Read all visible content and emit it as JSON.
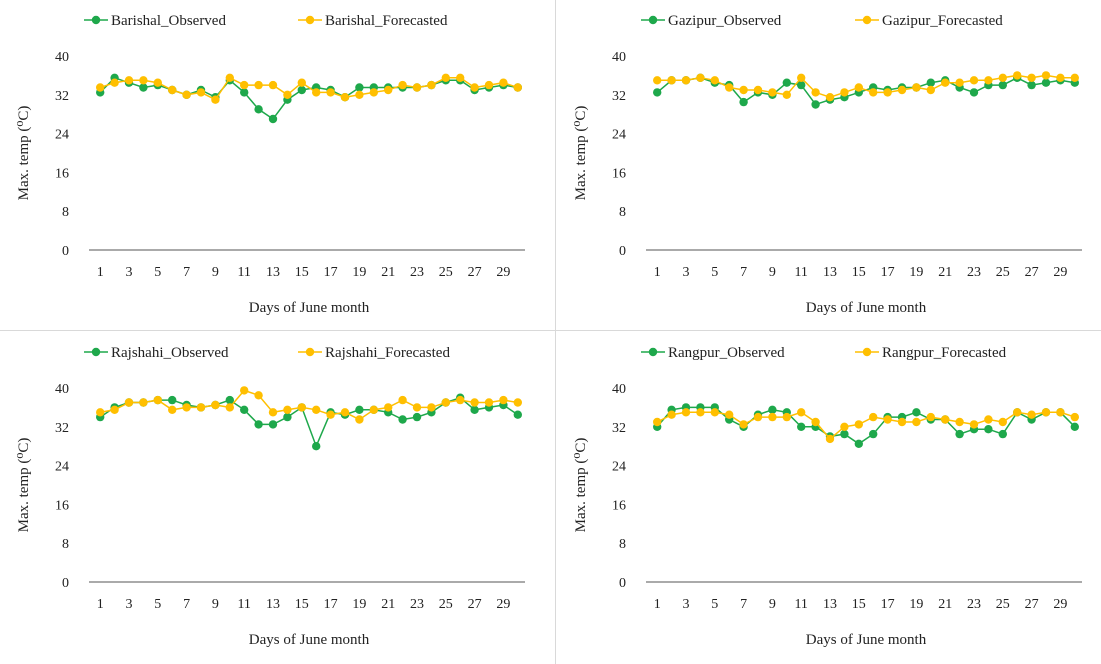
{
  "colors": {
    "observed": "#1ea84b",
    "forecasted": "#ffbf00",
    "axis": "#555555",
    "text": "#222222"
  },
  "chart_data": [
    {
      "type": "line",
      "xlabel": "Days of June month",
      "ylabel": "Max. temp (⁰C)",
      "ylim": [
        0,
        40
      ],
      "yticks": [
        "0",
        "8",
        "16",
        "24",
        "32",
        "40"
      ],
      "xticks": [
        "1",
        "3",
        "5",
        "7",
        "9",
        "11",
        "13",
        "15",
        "17",
        "19",
        "21",
        "23",
        "25",
        "27",
        "29"
      ],
      "x": [
        1,
        2,
        3,
        4,
        5,
        6,
        7,
        8,
        9,
        10,
        11,
        12,
        13,
        14,
        15,
        16,
        17,
        18,
        19,
        20,
        21,
        22,
        23,
        24,
        25,
        26,
        27,
        28,
        29,
        30
      ],
      "legend_position": "top",
      "series": [
        {
          "name": "Barishal_Observed",
          "values": [
            32.5,
            35.5,
            34.5,
            33.5,
            34,
            33,
            32,
            33,
            31.5,
            35,
            32.5,
            29,
            27,
            31,
            33,
            33.5,
            33,
            31.5,
            33.5,
            33.5,
            33.5,
            33.5,
            33.5,
            34,
            35,
            35,
            33,
            33.5,
            34,
            33.5
          ]
        },
        {
          "name": "Barishal_Forecasted",
          "values": [
            33.5,
            34.5,
            35,
            35,
            34.5,
            33,
            32,
            32.5,
            31,
            35.5,
            34,
            34,
            34,
            32,
            34.5,
            32.5,
            32.5,
            31.5,
            32,
            32.5,
            33,
            34,
            33.5,
            34,
            35.5,
            35.5,
            33.5,
            34,
            34.5,
            33.5
          ]
        }
      ]
    },
    {
      "type": "line",
      "xlabel": "Days of June month",
      "ylabel": "Max. temp (⁰C)",
      "ylim": [
        0,
        40
      ],
      "yticks": [
        "0",
        "8",
        "16",
        "24",
        "32",
        "40"
      ],
      "xticks": [
        "1",
        "3",
        "5",
        "7",
        "9",
        "11",
        "13",
        "15",
        "17",
        "19",
        "21",
        "23",
        "25",
        "27",
        "29"
      ],
      "x": [
        1,
        2,
        3,
        4,
        5,
        6,
        7,
        8,
        9,
        10,
        11,
        12,
        13,
        14,
        15,
        16,
        17,
        18,
        19,
        20,
        21,
        22,
        23,
        24,
        25,
        26,
        27,
        28,
        29,
        30
      ],
      "legend_position": "top",
      "series": [
        {
          "name": "Gazipur_Observed",
          "values": [
            32.5,
            35,
            35,
            35.5,
            34.5,
            34,
            30.5,
            32.5,
            32,
            34.5,
            34,
            30,
            31,
            31.5,
            32.5,
            33.5,
            33,
            33.5,
            33.5,
            34.5,
            35,
            33.5,
            32.5,
            34,
            34,
            35.5,
            34,
            34.5,
            35,
            34.5
          ]
        },
        {
          "name": "Gazipur_Forecasted",
          "values": [
            35,
            35,
            35,
            35.5,
            35,
            33.5,
            33,
            33,
            32.5,
            32,
            35.5,
            32.5,
            31.5,
            32.5,
            33.5,
            32.5,
            32.5,
            33,
            33.5,
            33,
            34.5,
            34.5,
            35,
            35,
            35.5,
            36,
            35.5,
            36,
            35.5,
            35.5
          ]
        }
      ]
    },
    {
      "type": "line",
      "xlabel": "Days of June month",
      "ylabel": "Max. temp (⁰C)",
      "ylim": [
        0,
        40
      ],
      "yticks": [
        "0",
        "8",
        "16",
        "24",
        "32",
        "40"
      ],
      "xticks": [
        "1",
        "3",
        "5",
        "7",
        "9",
        "11",
        "13",
        "15",
        "17",
        "19",
        "21",
        "23",
        "25",
        "27",
        "29"
      ],
      "x": [
        1,
        2,
        3,
        4,
        5,
        6,
        7,
        8,
        9,
        10,
        11,
        12,
        13,
        14,
        15,
        16,
        17,
        18,
        19,
        20,
        21,
        22,
        23,
        24,
        25,
        26,
        27,
        28,
        29,
        30
      ],
      "legend_position": "top",
      "series": [
        {
          "name": "Rajshahi_Observed",
          "values": [
            34,
            36,
            37,
            37,
            37.5,
            37.5,
            36.5,
            36,
            36.5,
            37.5,
            35.5,
            32.5,
            32.5,
            34,
            36,
            28,
            35,
            34.5,
            35.5,
            35.5,
            35,
            33.5,
            34,
            35,
            37,
            38,
            35.5,
            36,
            36.5,
            34.5
          ]
        },
        {
          "name": "Rajshahi_Forecasted",
          "values": [
            35,
            35.5,
            37,
            37,
            37.5,
            35.5,
            36,
            36,
            36.5,
            36,
            39.5,
            38.5,
            35,
            35.5,
            36,
            35.5,
            34.5,
            35,
            33.5,
            35.5,
            36,
            37.5,
            36,
            36,
            37,
            37.5,
            37,
            37,
            37.5,
            37
          ]
        }
      ]
    },
    {
      "type": "line",
      "xlabel": "Days of June month",
      "ylabel": "Max. temp (⁰C)",
      "ylim": [
        0,
        40
      ],
      "yticks": [
        "0",
        "8",
        "16",
        "24",
        "32",
        "40"
      ],
      "xticks": [
        "1",
        "3",
        "5",
        "7",
        "9",
        "11",
        "13",
        "15",
        "17",
        "19",
        "21",
        "23",
        "25",
        "27",
        "29"
      ],
      "x": [
        1,
        2,
        3,
        4,
        5,
        6,
        7,
        8,
        9,
        10,
        11,
        12,
        13,
        14,
        15,
        16,
        17,
        18,
        19,
        20,
        21,
        22,
        23,
        24,
        25,
        26,
        27,
        28,
        29,
        30
      ],
      "legend_position": "top",
      "series": [
        {
          "name": "Rangpur_Observed",
          "values": [
            32,
            35.5,
            36,
            36,
            36,
            33.5,
            32,
            34.5,
            35.5,
            35,
            32,
            32,
            30,
            30.5,
            28.5,
            30.5,
            34,
            34,
            35,
            33.5,
            33.5,
            30.5,
            31.5,
            31.5,
            30.5,
            35,
            33.5,
            35,
            35,
            32
          ]
        },
        {
          "name": "Rangpur_Forecasted",
          "values": [
            33,
            34.5,
            35,
            35,
            35,
            34.5,
            32.5,
            34,
            34,
            34,
            35,
            33,
            29.5,
            32,
            32.5,
            34,
            33.5,
            33,
            33,
            34,
            33.5,
            33,
            32.5,
            33.5,
            33,
            35,
            34.5,
            35,
            35,
            34
          ]
        }
      ]
    }
  ]
}
